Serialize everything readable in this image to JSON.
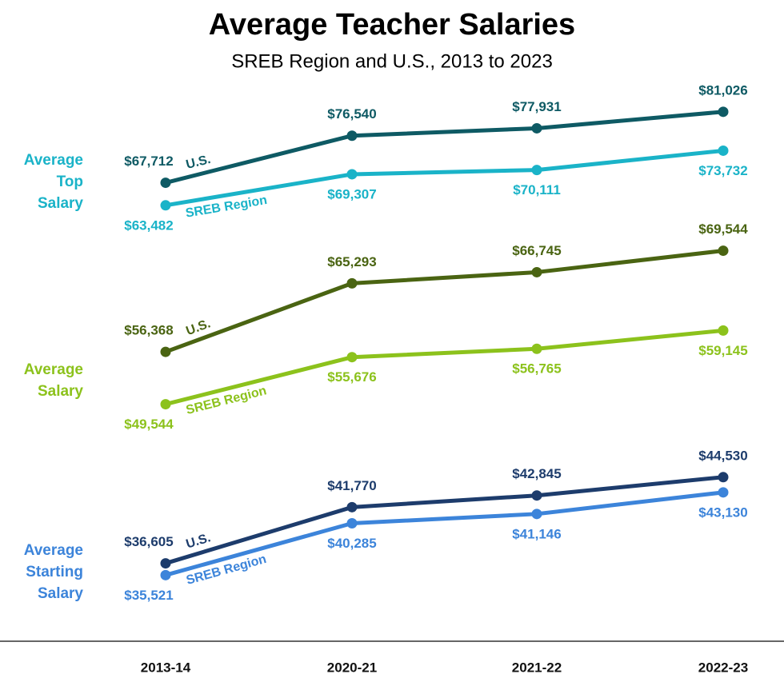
{
  "title": "Average Teacher Salaries",
  "subtitle": "SREB Region and U.S., 2013 to 2023",
  "chart_data": [
    {
      "type": "line",
      "label_lines": [
        "Average",
        "Top",
        "Salary"
      ],
      "categories": [
        "2013-14",
        "2020-21",
        "2021-22",
        "2022-23"
      ],
      "ylim": [
        57000,
        87000
      ],
      "series": [
        {
          "name": "U.S.",
          "color": "#0e5a64",
          "values": [
            67712,
            76540,
            77931,
            81026
          ],
          "value_labels": [
            "$67,712",
            "$76,540",
            "$77,931",
            "$81,026"
          ]
        },
        {
          "name": "SREB Region",
          "color": "#1ab3c8",
          "values": [
            63482,
            69307,
            70111,
            73732
          ],
          "value_labels": [
            "$63,482",
            "$69,307",
            "$70,111",
            "$73,732"
          ]
        }
      ]
    },
    {
      "type": "line",
      "label_lines": [
        "Average",
        "Salary"
      ],
      "categories": [
        "2013-14",
        "2020-21",
        "2021-22",
        "2022-23"
      ],
      "ylim": [
        47000,
        72000
      ],
      "series": [
        {
          "name": "U.S.",
          "color": "#4a6412",
          "values": [
            56368,
            65293,
            66745,
            69544
          ],
          "value_labels": [
            "$56,368",
            "$65,293",
            "$66,745",
            "$69,544"
          ]
        },
        {
          "name": "SREB Region",
          "color": "#8cc21c",
          "values": [
            49544,
            55676,
            56765,
            59145
          ],
          "value_labels": [
            "$49,544",
            "$55,676",
            "$56,765",
            "$59,145"
          ]
        }
      ]
    },
    {
      "type": "line",
      "label_lines": [
        "Average",
        "Starting",
        "Salary"
      ],
      "categories": [
        "2013-14",
        "2020-21",
        "2021-22",
        "2022-23"
      ],
      "ylim": [
        34000,
        46500
      ],
      "series": [
        {
          "name": "U.S.",
          "color": "#1d3c6c",
          "values": [
            36605,
            41770,
            42845,
            44530
          ],
          "value_labels": [
            "$36,605",
            "$41,770",
            "$42,845",
            "$44,530"
          ]
        },
        {
          "name": "SREB Region",
          "color": "#3c84da",
          "values": [
            35521,
            40285,
            41146,
            43130
          ],
          "value_labels": [
            "$35,521",
            "$40,285",
            "$41,146",
            "$43,130"
          ]
        }
      ]
    }
  ]
}
